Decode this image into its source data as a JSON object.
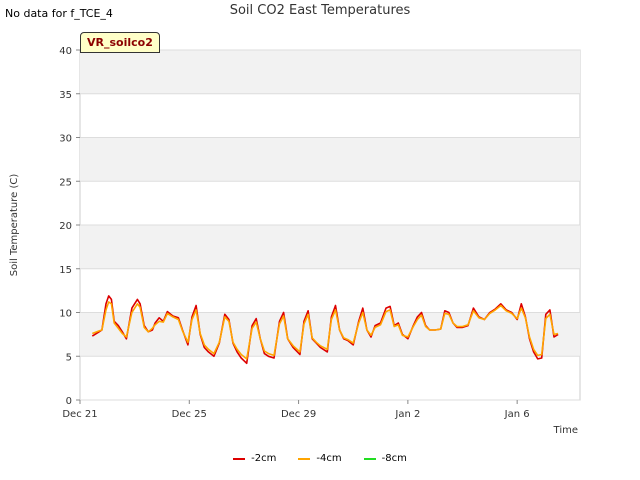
{
  "note": "No data for f_TCE_4",
  "chart_data": {
    "type": "line",
    "title": "Soil CO2 East Temperatures",
    "xlabel": "Time",
    "ylabel": "Soil Temperature (C)",
    "ylim": [
      0,
      40
    ],
    "yticks": [
      0,
      5,
      10,
      15,
      20,
      25,
      30,
      35,
      40
    ],
    "xlim": [
      0,
      18.3
    ],
    "xtick_positions": [
      0,
      4,
      8,
      12,
      16
    ],
    "xtick_labels": [
      "Dec 21",
      "Dec 25",
      "Dec 29",
      "Jan 2",
      "Jan 6"
    ],
    "grid": true,
    "badge": "VR_soilco2",
    "legend_position": "bottom",
    "series": [
      {
        "name": "-2cm",
        "color": "#dd0000",
        "x": [
          0.45,
          0.7,
          0.8,
          0.95,
          1.05,
          1.15,
          1.25,
          1.4,
          1.55,
          1.7,
          1.9,
          2.1,
          2.2,
          2.35,
          2.5,
          2.65,
          2.75,
          2.9,
          3.05,
          3.2,
          3.4,
          3.6,
          3.75,
          3.95,
          4.1,
          4.25,
          4.4,
          4.55,
          4.7,
          4.9,
          5.1,
          5.3,
          5.45,
          5.6,
          5.75,
          5.9,
          6.1,
          6.3,
          6.45,
          6.6,
          6.75,
          6.9,
          7.1,
          7.3,
          7.45,
          7.6,
          7.8,
          8.05,
          8.2,
          8.35,
          8.5,
          8.65,
          8.8,
          9.05,
          9.2,
          9.35,
          9.5,
          9.65,
          9.8,
          10.0,
          10.2,
          10.35,
          10.5,
          10.65,
          10.8,
          11.0,
          11.2,
          11.35,
          11.5,
          11.65,
          11.8,
          12.0,
          12.2,
          12.35,
          12.5,
          12.65,
          12.8,
          13.0,
          13.2,
          13.35,
          13.5,
          13.65,
          13.8,
          14.0,
          14.2,
          14.4,
          14.6,
          14.8,
          15.0,
          15.2,
          15.4,
          15.6,
          15.8,
          16.0,
          16.15,
          16.3,
          16.45,
          16.6,
          16.75,
          16.9,
          17.05,
          17.2,
          17.35,
          17.5
        ],
        "y": [
          7.3,
          7.8,
          8.0,
          11.0,
          11.9,
          11.5,
          9.0,
          8.5,
          7.8,
          7.0,
          10.5,
          11.5,
          11.0,
          8.5,
          7.8,
          8.0,
          8.8,
          9.4,
          9.0,
          10.1,
          9.6,
          9.4,
          8.0,
          6.3,
          9.5,
          10.8,
          7.5,
          6.0,
          5.5,
          5.0,
          6.5,
          9.8,
          9.2,
          6.5,
          5.5,
          4.8,
          4.2,
          8.5,
          9.3,
          7.0,
          5.3,
          5.0,
          4.8,
          9.0,
          10.0,
          7.0,
          6.0,
          5.2,
          9.0,
          10.2,
          7.0,
          6.5,
          6.0,
          5.5,
          9.5,
          10.8,
          8.0,
          7.0,
          6.8,
          6.3,
          9.0,
          10.5,
          8.0,
          7.2,
          8.5,
          8.8,
          10.5,
          10.7,
          8.5,
          8.8,
          7.5,
          7.0,
          8.5,
          9.5,
          10.0,
          8.5,
          8.0,
          8.0,
          8.1,
          10.2,
          10.0,
          8.8,
          8.3,
          8.3,
          8.5,
          10.5,
          9.5,
          9.2,
          10.0,
          10.4,
          11.0,
          10.3,
          10.0,
          9.2,
          11.0,
          9.5,
          7.0,
          5.5,
          4.7,
          4.8,
          9.8,
          10.3,
          7.2,
          7.5
        ]
      },
      {
        "name": "-4cm",
        "color": "#ffa500",
        "x": [
          0.45,
          0.7,
          0.8,
          0.95,
          1.05,
          1.15,
          1.25,
          1.4,
          1.55,
          1.7,
          1.9,
          2.1,
          2.2,
          2.35,
          2.5,
          2.65,
          2.75,
          2.9,
          3.05,
          3.2,
          3.4,
          3.6,
          3.75,
          3.95,
          4.1,
          4.25,
          4.4,
          4.55,
          4.7,
          4.9,
          5.1,
          5.3,
          5.45,
          5.6,
          5.75,
          5.9,
          6.1,
          6.3,
          6.45,
          6.6,
          6.75,
          6.9,
          7.1,
          7.3,
          7.45,
          7.6,
          7.8,
          8.05,
          8.2,
          8.35,
          8.5,
          8.65,
          8.8,
          9.05,
          9.2,
          9.35,
          9.5,
          9.65,
          9.8,
          10.0,
          10.2,
          10.35,
          10.5,
          10.65,
          10.8,
          11.0,
          11.2,
          11.35,
          11.5,
          11.65,
          11.8,
          12.0,
          12.2,
          12.35,
          12.5,
          12.65,
          12.8,
          13.0,
          13.2,
          13.35,
          13.5,
          13.65,
          13.8,
          14.0,
          14.2,
          14.4,
          14.6,
          14.8,
          15.0,
          15.2,
          15.4,
          15.6,
          15.8,
          16.0,
          16.15,
          16.3,
          16.45,
          16.6,
          16.75,
          16.9,
          17.05,
          17.2,
          17.35,
          17.5
        ],
        "y": [
          7.6,
          7.9,
          8.0,
          10.3,
          11.2,
          11.0,
          8.8,
          8.2,
          7.6,
          7.2,
          10.0,
          11.0,
          10.6,
          8.3,
          7.8,
          8.2,
          8.6,
          9.0,
          8.9,
          9.9,
          9.5,
          9.2,
          7.9,
          6.6,
          9.2,
          10.3,
          7.6,
          6.3,
          5.8,
          5.3,
          6.6,
          9.5,
          9.0,
          6.6,
          5.8,
          5.2,
          4.7,
          8.2,
          8.9,
          7.0,
          5.6,
          5.3,
          5.1,
          8.7,
          9.6,
          7.0,
          6.2,
          5.5,
          8.7,
          9.8,
          7.1,
          6.6,
          6.2,
          5.8,
          9.2,
          10.3,
          8.0,
          7.1,
          6.9,
          6.5,
          8.8,
          10.0,
          8.0,
          7.4,
          8.3,
          8.6,
          10.1,
          10.3,
          8.4,
          8.6,
          7.4,
          7.2,
          8.4,
          9.2,
          9.7,
          8.4,
          8.0,
          8.0,
          8.1,
          9.9,
          9.8,
          8.8,
          8.4,
          8.4,
          8.6,
          10.2,
          9.4,
          9.2,
          9.9,
          10.3,
          10.8,
          10.2,
          9.9,
          9.3,
          10.5,
          9.4,
          7.2,
          5.8,
          5.1,
          5.2,
          9.3,
          9.8,
          7.5,
          7.6
        ]
      },
      {
        "name": "-8cm",
        "color": "#22dd22",
        "x": [],
        "y": []
      }
    ]
  }
}
